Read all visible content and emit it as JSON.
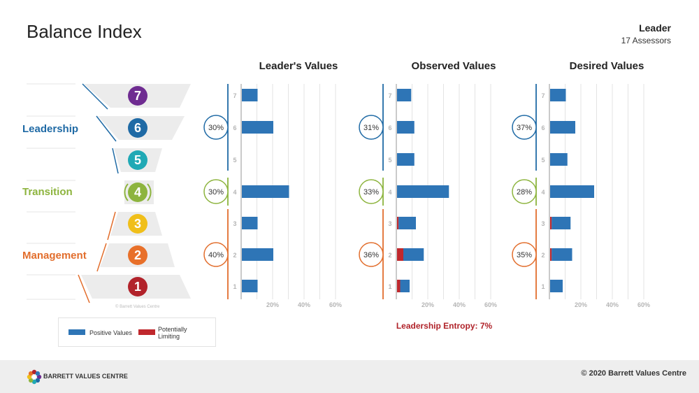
{
  "page": {
    "title": "Balance Index",
    "leader_name": "Leader",
    "assessors": "17 Assessors",
    "small_copyright": "© Barrett Values Centre",
    "entropy_label": "Leadership Entropy: 7%",
    "footer_brand": "BARRETT VALUES CENTRE",
    "footer_copyright": "© 2020 Barrett Values Centre"
  },
  "colors": {
    "positive": "#2e75b6",
    "limiting": "#c0282d",
    "leadership": "#1f6aa5",
    "transition": "#8db43e",
    "management": "#e26e2d",
    "level7": "#6f2c91",
    "level6": "#1f6aa5",
    "level5": "#20a9b5",
    "level4": "#8db43e",
    "level3": "#f0bf1a",
    "level2": "#e8702a",
    "level1": "#b2232b"
  },
  "groups": {
    "leadership": "Leadership",
    "transition": "Transition",
    "management": "Management"
  },
  "levels": [
    "7",
    "6",
    "5",
    "4",
    "3",
    "2",
    "1"
  ],
  "legend": {
    "positive": "Positive Values",
    "limiting_line1": "Potentially",
    "limiting_line2": "Limiting"
  },
  "chart_data": [
    {
      "type": "bar",
      "title": "Leader's Values",
      "categories": [
        "7",
        "6",
        "5",
        "4",
        "3",
        "2",
        "1"
      ],
      "series": [
        {
          "name": "Positive Values",
          "values": [
            10,
            20,
            0,
            30,
            10,
            20,
            10
          ]
        },
        {
          "name": "Potentially Limiting",
          "values": [
            0,
            0,
            0,
            0,
            0,
            0,
            0
          ]
        }
      ],
      "xlim": [
        0,
        60
      ],
      "xticks": [
        "20%",
        "40%",
        "60%"
      ],
      "group_percents": {
        "leadership": "30%",
        "transition": "30%",
        "management": "40%"
      }
    },
    {
      "type": "bar",
      "title": "Observed Values",
      "categories": [
        "7",
        "6",
        "5",
        "4",
        "3",
        "2",
        "1"
      ],
      "series": [
        {
          "name": "Positive Values",
          "values": [
            9,
            11,
            11,
            33,
            11,
            13,
            6
          ]
        },
        {
          "name": "Potentially Limiting",
          "values": [
            0,
            0,
            0,
            0,
            1,
            4,
            2
          ]
        }
      ],
      "xlim": [
        0,
        60
      ],
      "xticks": [
        "20%",
        "40%",
        "60%"
      ],
      "group_percents": {
        "leadership": "31%",
        "transition": "33%",
        "management": "36%"
      }
    },
    {
      "type": "bar",
      "title": "Desired Values",
      "categories": [
        "7",
        "6",
        "5",
        "4",
        "3",
        "2",
        "1"
      ],
      "series": [
        {
          "name": "Positive Values",
          "values": [
            10,
            16,
            11,
            28,
            12,
            13,
            8
          ]
        },
        {
          "name": "Potentially Limiting",
          "values": [
            0,
            0,
            0,
            0,
            1,
            1,
            0
          ]
        }
      ],
      "xlim": [
        0,
        60
      ],
      "xticks": [
        "20%",
        "40%",
        "60%"
      ],
      "group_percents": {
        "leadership": "37%",
        "transition": "28%",
        "management": "35%"
      }
    }
  ]
}
